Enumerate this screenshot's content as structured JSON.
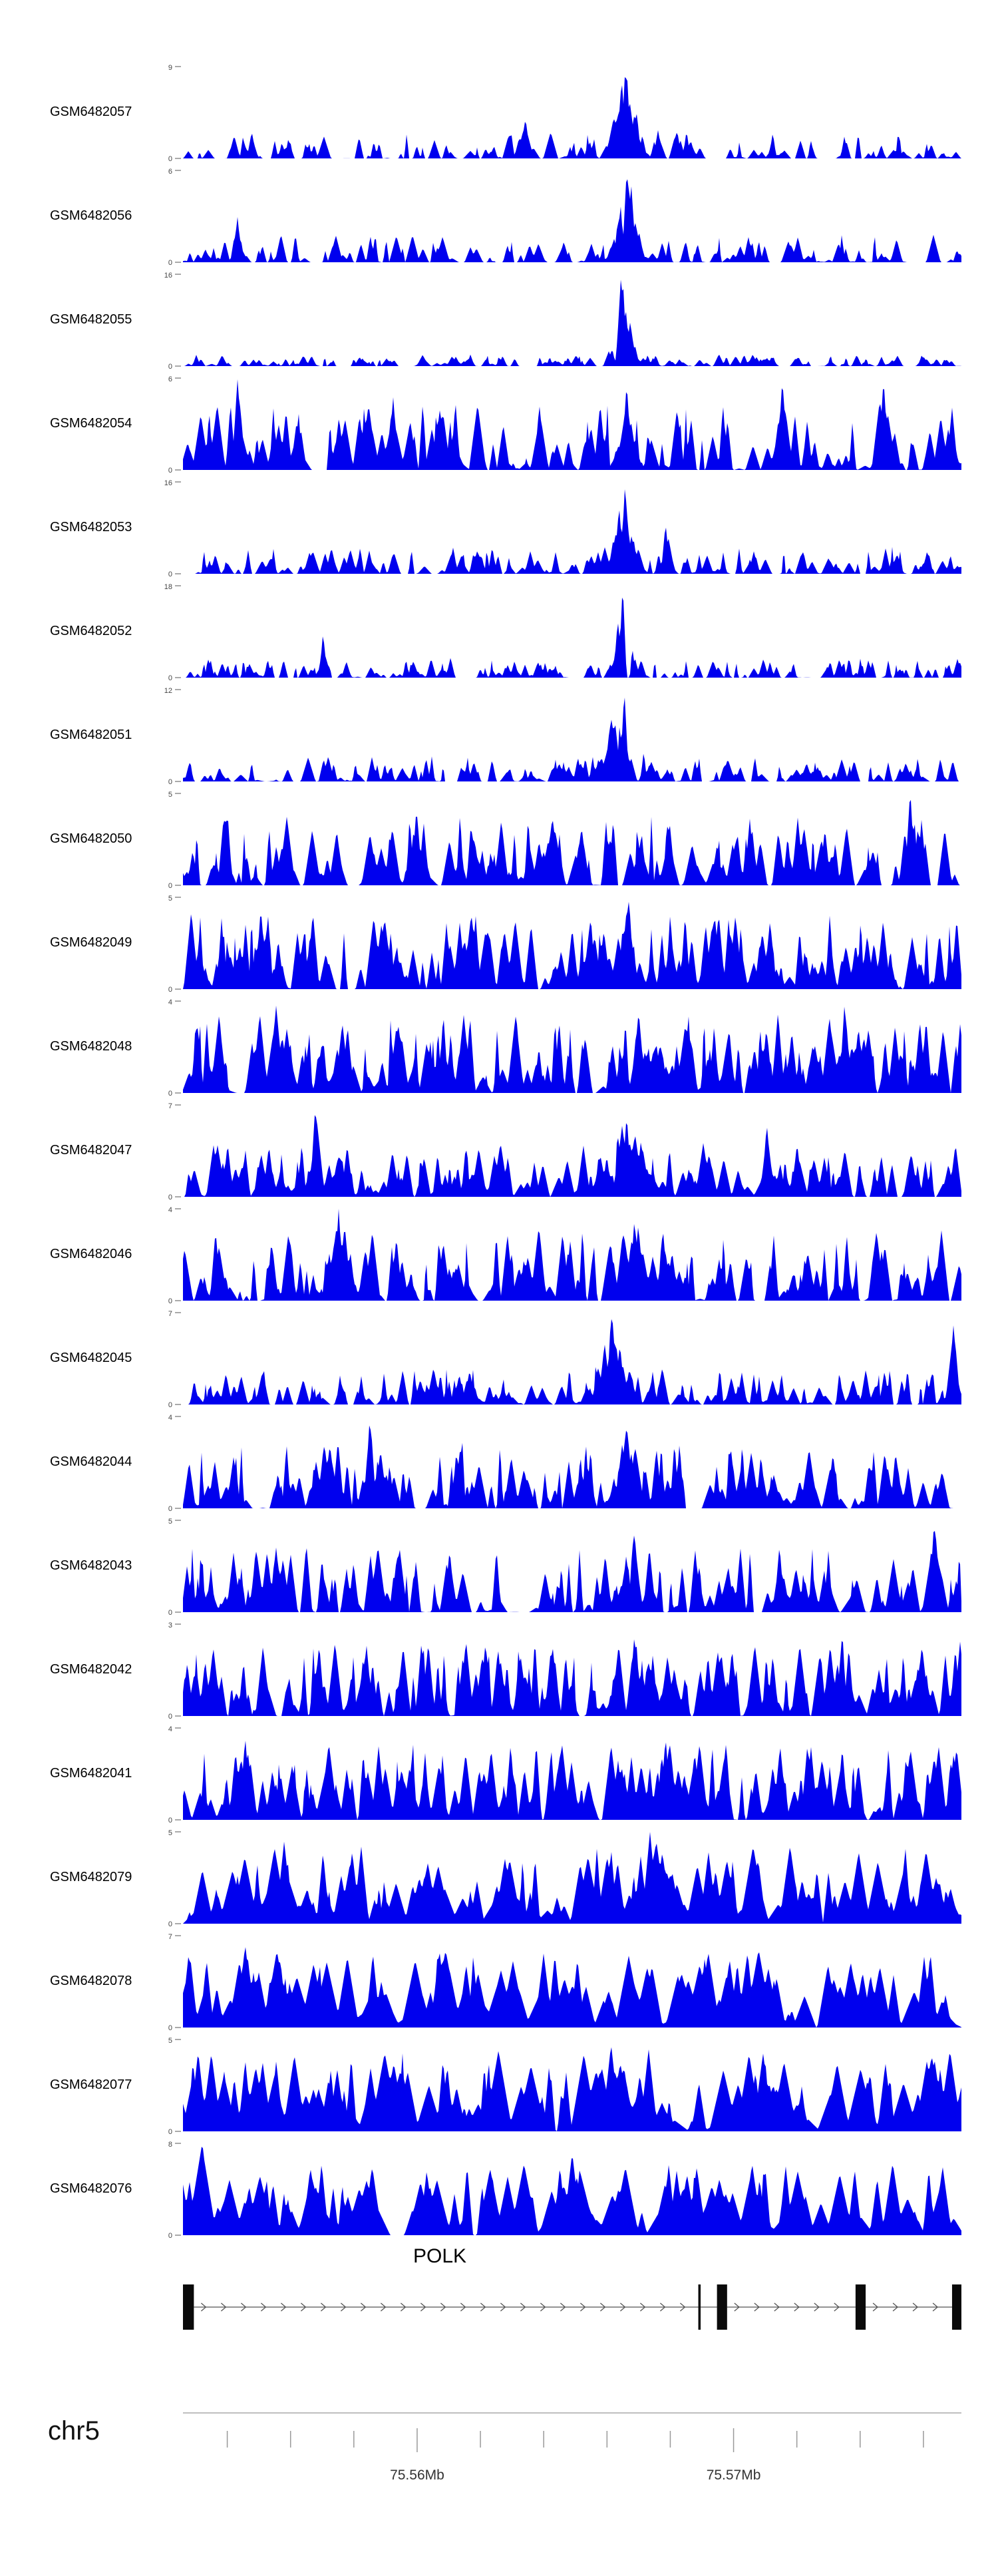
{
  "chart_data": {
    "type": "area",
    "chart_kind": "genome-coverage-tracks",
    "color": "#0000ee",
    "x_axis": {
      "chromosome": "chr5",
      "range_mb": [
        75.5526,
        75.5772
      ],
      "minor_tick_interval_mb": 0.002,
      "major_ticks_mb": [
        75.56,
        75.57
      ],
      "major_tick_labels": [
        "75.56Mb",
        "75.57Mb"
      ]
    },
    "gene_track": {
      "gene": "POLK",
      "strand": "+",
      "exons_frac": [
        [
          0.0,
          0.014
        ],
        [
          0.662,
          0.665
        ],
        [
          0.686,
          0.699
        ],
        [
          0.864,
          0.877
        ],
        [
          0.988,
          1.0
        ]
      ]
    },
    "tracks": [
      {
        "label": "GSM6482057",
        "ylim": [
          0,
          9
        ],
        "seed": 11,
        "background": {
          "spikes": 150,
          "amp": 0.32,
          "width": 0.006
        },
        "peaks": [
          {
            "center": 0.57,
            "width": 0.03,
            "height": 1.0
          },
          {
            "center": 0.44,
            "width": 0.008,
            "height": 0.45
          }
        ]
      },
      {
        "label": "GSM6482056",
        "ylim": [
          0,
          6
        ],
        "seed": 22,
        "background": {
          "spikes": 150,
          "amp": 0.33,
          "width": 0.006
        },
        "peaks": [
          {
            "center": 0.57,
            "width": 0.025,
            "height": 1.0
          },
          {
            "center": 0.07,
            "width": 0.01,
            "height": 0.5
          }
        ]
      },
      {
        "label": "GSM6482055",
        "ylim": [
          0,
          16
        ],
        "seed": 33,
        "background": {
          "spikes": 200,
          "amp": 0.13,
          "width": 0.005
        },
        "peaks": [
          {
            "center": 0.565,
            "width": 0.022,
            "height": 1.0
          }
        ]
      },
      {
        "label": "GSM6482054",
        "ylim": [
          0,
          6
        ],
        "seed": 44,
        "background": {
          "spikes": 170,
          "amp": 0.75,
          "width": 0.007
        },
        "peaks": [
          {
            "center": 0.07,
            "width": 0.012,
            "height": 1.0
          },
          {
            "center": 0.27,
            "width": 0.01,
            "height": 0.8
          },
          {
            "center": 0.57,
            "width": 0.02,
            "height": 0.95
          },
          {
            "center": 0.77,
            "width": 0.012,
            "height": 1.0
          },
          {
            "center": 0.9,
            "width": 0.015,
            "height": 1.0
          }
        ]
      },
      {
        "label": "GSM6482053",
        "ylim": [
          0,
          16
        ],
        "seed": 55,
        "background": {
          "spikes": 190,
          "amp": 0.3,
          "width": 0.006
        },
        "peaks": [
          {
            "center": 0.568,
            "width": 0.025,
            "height": 1.0
          },
          {
            "center": 0.62,
            "width": 0.01,
            "height": 0.55
          }
        ]
      },
      {
        "label": "GSM6482052",
        "ylim": [
          0,
          18
        ],
        "seed": 66,
        "background": {
          "spikes": 190,
          "amp": 0.22,
          "width": 0.005
        },
        "peaks": [
          {
            "center": 0.565,
            "width": 0.02,
            "height": 1.0
          },
          {
            "center": 0.18,
            "width": 0.006,
            "height": 0.5
          }
        ]
      },
      {
        "label": "GSM6482051",
        "ylim": [
          0,
          12
        ],
        "seed": 77,
        "background": {
          "spikes": 180,
          "amp": 0.28,
          "width": 0.006
        },
        "peaks": [
          {
            "center": 0.567,
            "width": 0.045,
            "height": 1.0
          }
        ]
      },
      {
        "label": "GSM6482050",
        "ylim": [
          0,
          5
        ],
        "seed": 88,
        "background": {
          "spikes": 240,
          "amp": 0.8,
          "width": 0.007
        },
        "peaks": [
          {
            "center": 0.934,
            "width": 0.01,
            "height": 1.0
          },
          {
            "center": 0.3,
            "width": 0.02,
            "height": 0.85
          }
        ]
      },
      {
        "label": "GSM6482049",
        "ylim": [
          0,
          5
        ],
        "seed": 99,
        "background": {
          "spikes": 240,
          "amp": 0.85,
          "width": 0.007
        },
        "peaks": [
          {
            "center": 0.573,
            "width": 0.02,
            "height": 1.0
          },
          {
            "center": 0.1,
            "width": 0.015,
            "height": 0.9
          }
        ]
      },
      {
        "label": "GSM6482048",
        "ylim": [
          0,
          4
        ],
        "seed": 110,
        "background": {
          "spikes": 260,
          "amp": 0.9,
          "width": 0.007
        },
        "peaks": [
          {
            "center": 0.12,
            "width": 0.01,
            "height": 1.0
          },
          {
            "center": 0.85,
            "width": 0.015,
            "height": 1.0
          }
        ]
      },
      {
        "label": "GSM6482047",
        "ylim": [
          0,
          7
        ],
        "seed": 121,
        "background": {
          "spikes": 210,
          "amp": 0.6,
          "width": 0.007
        },
        "peaks": [
          {
            "center": 0.17,
            "width": 0.008,
            "height": 1.0
          },
          {
            "center": 0.57,
            "width": 0.05,
            "height": 0.9
          },
          {
            "center": 0.75,
            "width": 0.01,
            "height": 0.8
          }
        ]
      },
      {
        "label": "GSM6482046",
        "ylim": [
          0,
          4
        ],
        "seed": 132,
        "background": {
          "spikes": 230,
          "amp": 0.8,
          "width": 0.007
        },
        "peaks": [
          {
            "center": 0.2,
            "width": 0.03,
            "height": 1.0
          },
          {
            "center": 0.58,
            "width": 0.04,
            "height": 0.9
          }
        ]
      },
      {
        "label": "GSM6482045",
        "ylim": [
          0,
          7
        ],
        "seed": 143,
        "background": {
          "spikes": 200,
          "amp": 0.42,
          "width": 0.006
        },
        "peaks": [
          {
            "center": 0.55,
            "width": 0.035,
            "height": 1.0
          },
          {
            "center": 0.99,
            "width": 0.008,
            "height": 0.9
          }
        ]
      },
      {
        "label": "GSM6482044",
        "ylim": [
          0,
          4
        ],
        "seed": 154,
        "background": {
          "spikes": 220,
          "amp": 0.75,
          "width": 0.007
        },
        "peaks": [
          {
            "center": 0.24,
            "width": 0.008,
            "height": 1.0
          },
          {
            "center": 0.57,
            "width": 0.03,
            "height": 0.95
          }
        ]
      },
      {
        "label": "GSM6482043",
        "ylim": [
          0,
          5
        ],
        "seed": 165,
        "background": {
          "spikes": 230,
          "amp": 0.75,
          "width": 0.007
        },
        "peaks": [
          {
            "center": 0.58,
            "width": 0.03,
            "height": 0.9
          },
          {
            "center": 0.965,
            "width": 0.01,
            "height": 1.0
          }
        ]
      },
      {
        "label": "GSM6482042",
        "ylim": [
          0,
          3
        ],
        "seed": 176,
        "background": {
          "spikes": 240,
          "amp": 0.85,
          "width": 0.007
        },
        "peaks": [
          {
            "center": 0.58,
            "width": 0.05,
            "height": 0.9
          }
        ]
      },
      {
        "label": "GSM6482041",
        "ylim": [
          0,
          4
        ],
        "seed": 187,
        "background": {
          "spikes": 240,
          "amp": 0.85,
          "width": 0.008
        },
        "peaks": [
          {
            "center": 0.62,
            "width": 0.05,
            "height": 0.9
          },
          {
            "center": 0.08,
            "width": 0.02,
            "height": 0.9
          }
        ]
      },
      {
        "label": "GSM6482079",
        "ylim": [
          0,
          5
        ],
        "seed": 198,
        "background": {
          "spikes": 200,
          "amp": 0.85,
          "width": 0.011
        },
        "peaks": [
          {
            "center": 0.6,
            "width": 0.06,
            "height": 1.0
          },
          {
            "center": 0.13,
            "width": 0.02,
            "height": 0.9
          }
        ]
      },
      {
        "label": "GSM6482078",
        "ylim": [
          0,
          7
        ],
        "seed": 209,
        "background": {
          "spikes": 200,
          "amp": 0.85,
          "width": 0.012
        },
        "peaks": [
          {
            "center": 0.08,
            "width": 0.03,
            "height": 0.9
          }
        ]
      },
      {
        "label": "GSM6482077",
        "ylim": [
          0,
          5
        ],
        "seed": 220,
        "background": {
          "spikes": 220,
          "amp": 0.9,
          "width": 0.012
        },
        "peaks": [
          {
            "center": 0.55,
            "width": 0.05,
            "height": 0.95
          }
        ]
      },
      {
        "label": "GSM6482076",
        "ylim": [
          0,
          8
        ],
        "seed": 231,
        "background": {
          "spikes": 190,
          "amp": 0.8,
          "width": 0.012
        },
        "peaks": [
          {
            "center": 0.025,
            "width": 0.012,
            "height": 1.0
          },
          {
            "center": 0.5,
            "width": 0.04,
            "height": 0.9
          }
        ]
      }
    ]
  }
}
